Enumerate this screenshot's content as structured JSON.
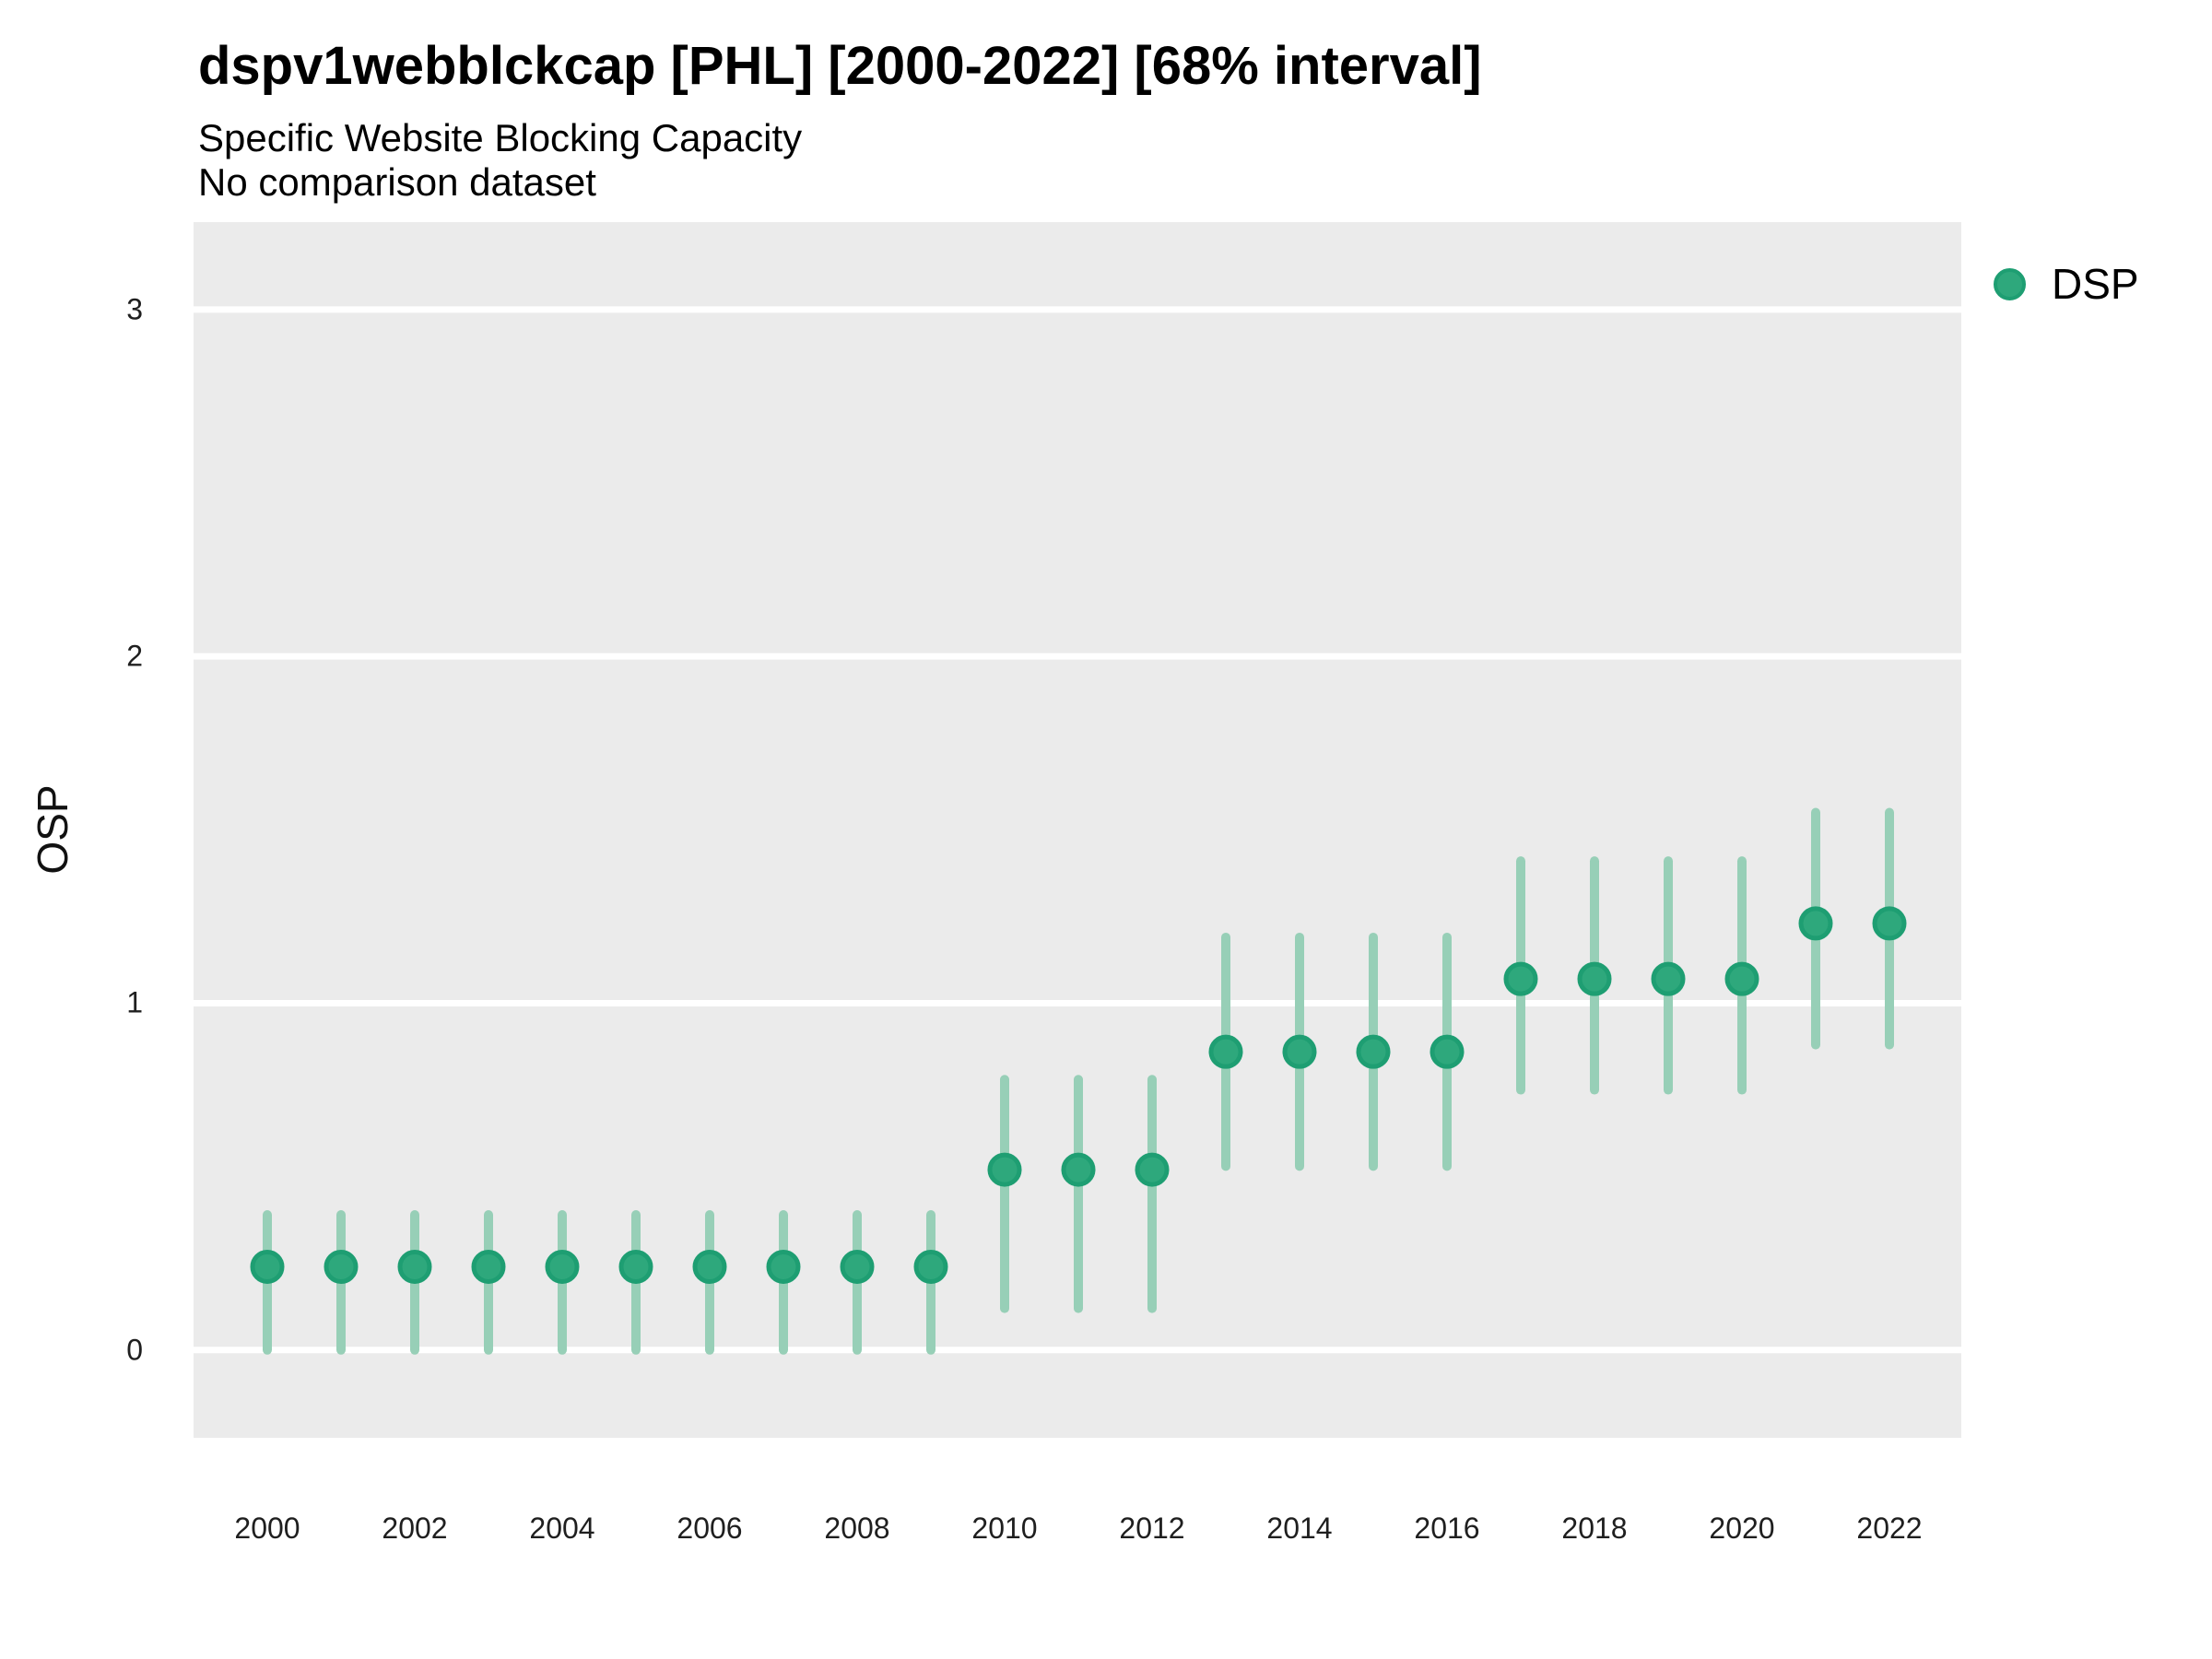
{
  "header": {
    "title": "dspv1webblckcap [PHL] [2000-2022] [68% interval]",
    "subtitle": "Specific Website Blocking Capacity",
    "note": "No comparison dataset"
  },
  "legend": {
    "label": "DSP"
  },
  "colors": {
    "point_fill": "#2EA87C",
    "point_stroke": "#1E9E72",
    "interval": "#97CFB7",
    "panel_background": "#EBEBEB",
    "gridline": "#FFFFFF",
    "text": "#1F1F1F"
  },
  "chart_data": {
    "type": "scatter",
    "title": "dspv1webblckcap [PHL] [2000-2022] [68% interval]",
    "subtitle": "Specific Website Blocking Capacity",
    "note": "No comparison dataset",
    "xlabel": "",
    "ylabel": "OSP",
    "x": [
      2000,
      2001,
      2002,
      2003,
      2004,
      2005,
      2006,
      2007,
      2008,
      2009,
      2010,
      2011,
      2012,
      2013,
      2014,
      2015,
      2016,
      2017,
      2018,
      2019,
      2020,
      2021,
      2022
    ],
    "series": [
      {
        "name": "DSP",
        "values": [
          0.24,
          0.24,
          0.24,
          0.24,
          0.24,
          0.24,
          0.24,
          0.24,
          0.24,
          0.24,
          0.52,
          0.52,
          0.52,
          0.86,
          0.86,
          0.86,
          0.86,
          1.07,
          1.07,
          1.07,
          1.07,
          1.23,
          1.23
        ],
        "lower": [
          0.0,
          0.0,
          0.0,
          0.0,
          0.0,
          0.0,
          0.0,
          0.0,
          0.0,
          0.0,
          0.12,
          0.12,
          0.12,
          0.53,
          0.53,
          0.53,
          0.53,
          0.75,
          0.75,
          0.75,
          0.75,
          0.88,
          0.88
        ],
        "upper": [
          0.39,
          0.39,
          0.39,
          0.39,
          0.39,
          0.39,
          0.39,
          0.39,
          0.39,
          0.39,
          0.78,
          0.78,
          0.78,
          1.19,
          1.19,
          1.19,
          1.19,
          1.41,
          1.41,
          1.41,
          1.41,
          1.55,
          1.55
        ],
        "interval_level": "68%"
      }
    ],
    "yticks": [
      0,
      1,
      2,
      3
    ],
    "xticks": [
      2000,
      2002,
      2004,
      2006,
      2008,
      2010,
      2012,
      2014,
      2016,
      2018,
      2020,
      2022
    ],
    "ylim": [
      -0.253,
      3.252
    ],
    "xlim": [
      1999.0,
      2022.975
    ],
    "grid": "horizontal-major-only",
    "legend_position": "right-top"
  }
}
